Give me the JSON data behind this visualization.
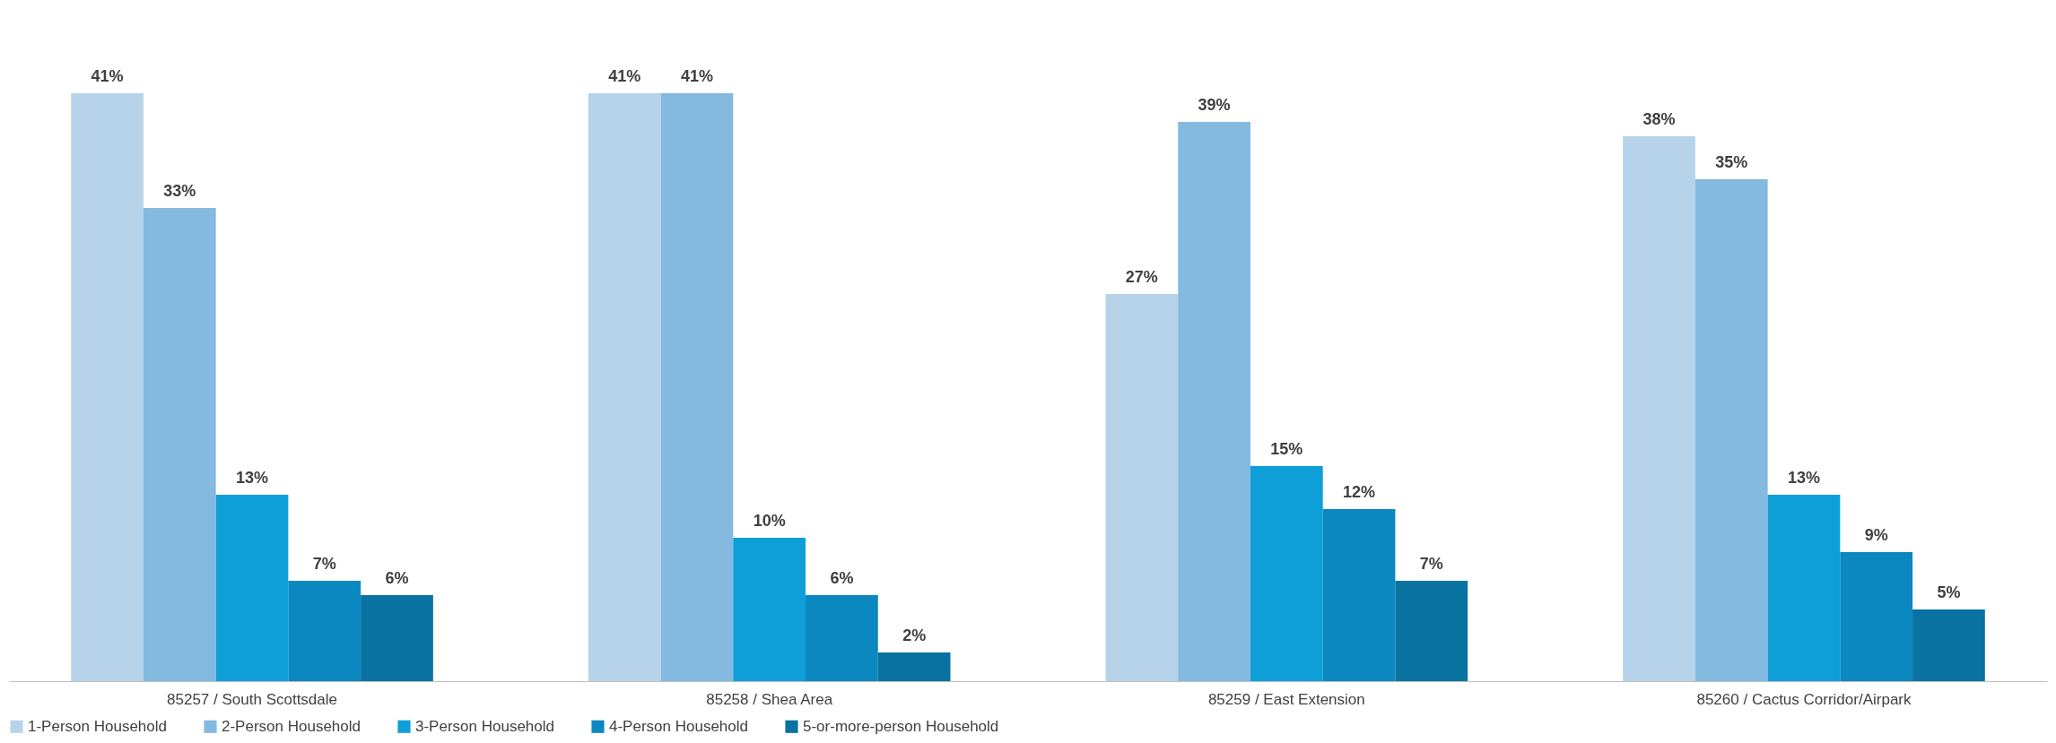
{
  "chart_data": {
    "type": "bar",
    "categories": [
      "85257 / South Scottsdale",
      "85258 / Shea Area",
      "85259 / East Extension",
      "85260 / Cactus Corridor/Airpark"
    ],
    "series": [
      {
        "name": "1-Person Household",
        "color": "#b6d3ea",
        "values": [
          41,
          41,
          27,
          38
        ],
        "value_labels": [
          "41%",
          "41%",
          "27%",
          "38%"
        ]
      },
      {
        "name": "2-Person Household",
        "color": "#84b9e0",
        "values": [
          33,
          41,
          39,
          35
        ],
        "value_labels": [
          "33%",
          "41%",
          "39%",
          "35%"
        ]
      },
      {
        "name": "3-Person Household",
        "color": "#0e9fd8",
        "values": [
          13,
          10,
          15,
          13
        ],
        "value_labels": [
          "13%",
          "10%",
          "15%",
          "13%"
        ]
      },
      {
        "name": "4-Person Household",
        "color": "#0b88bf",
        "values": [
          7,
          6,
          12,
          9
        ],
        "value_labels": [
          "7%",
          "6%",
          "12%",
          "9%"
        ]
      },
      {
        "name": "5-or-more-person Household",
        "color": "#0a72a1",
        "values": [
          6,
          2,
          7,
          5
        ],
        "value_labels": [
          "6%",
          "2%",
          "7%",
          "5%"
        ]
      }
    ],
    "legend": "bottom"
  }
}
